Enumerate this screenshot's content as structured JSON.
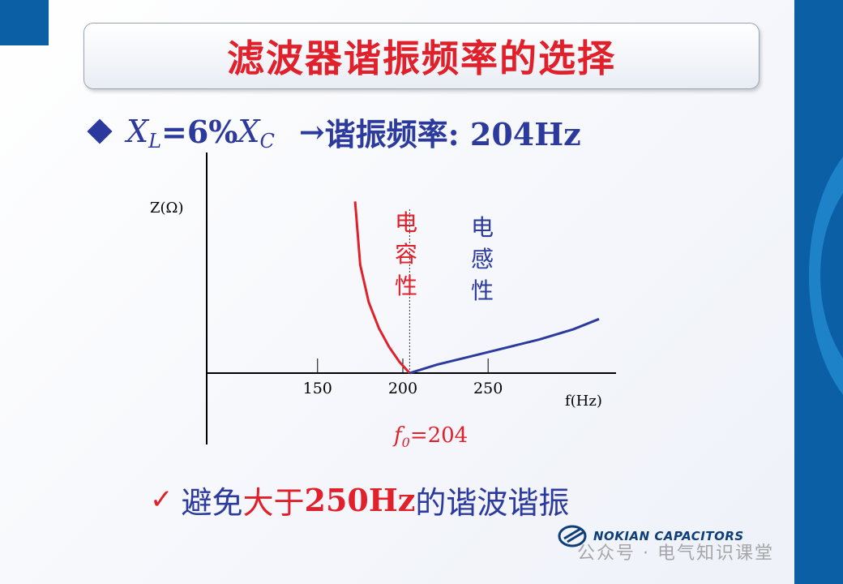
{
  "title": "滤波器谐振频率的选择",
  "bullet": {
    "x_var": "X",
    "x_sub_l": "L",
    "equals_pct": "=6%",
    "x_sub_c": "C",
    "arrow": "→",
    "resonance_text": "谐振频率: 204Hz"
  },
  "chart_data": {
    "type": "line",
    "ylabel": "Z(Ω)",
    "xlabel": "f(Hz)",
    "x_ticks": [
      150,
      200,
      250
    ],
    "xlim": [
      85,
      325
    ],
    "f0_value": 204,
    "f0_prefix": "f",
    "f0_sub": "0",
    "f0_suffix": "=204",
    "region_capacitive_label": [
      "电",
      "容",
      "性"
    ],
    "region_inductive_label": [
      "电",
      "感",
      "性"
    ],
    "capacitive_color": "#e0202a",
    "inductive_color": "#2b3a9c",
    "series": [
      {
        "values": [
          [
            172,
            92
          ],
          [
            175,
            58
          ],
          [
            180,
            38
          ],
          [
            186,
            24
          ],
          [
            192,
            14
          ],
          [
            198,
            6
          ],
          [
            204,
            0
          ]
        ]
      },
      {
        "values": [
          [
            204,
            0
          ],
          [
            220,
            4.5
          ],
          [
            240,
            9
          ],
          [
            260,
            13.5
          ],
          [
            280,
            18
          ],
          [
            300,
            23.5
          ],
          [
            315,
            29
          ]
        ]
      }
    ]
  },
  "conclusion": {
    "check": "✓",
    "part1": "避免 ",
    "part2": "大于",
    "part3": "250Hz",
    "part4": " 的谐波谐振"
  },
  "logo": {
    "text": "NOKIAN CAPACITORS"
  },
  "watermark": "公众号 · 电气知识课堂"
}
